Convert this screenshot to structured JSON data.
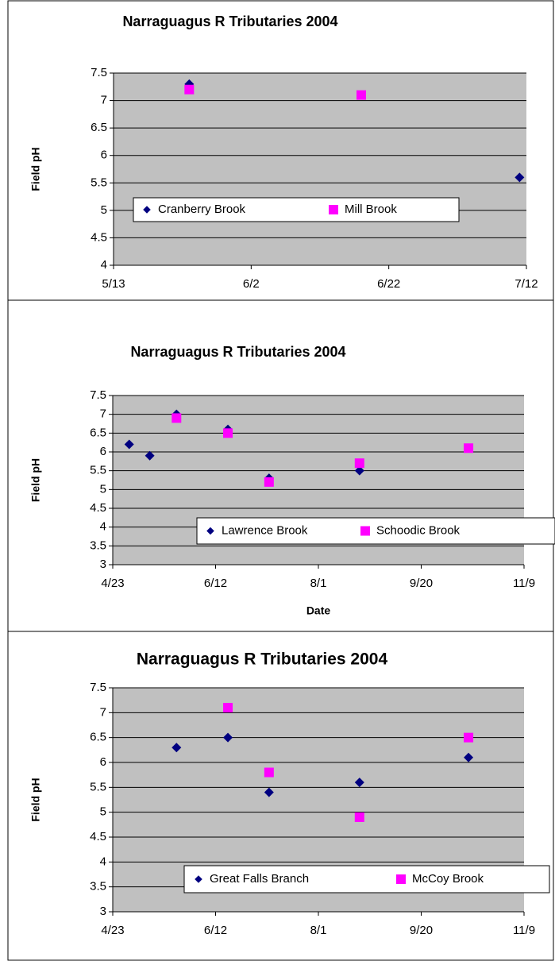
{
  "chart_data": [
    {
      "type": "scatter",
      "title": "Narraguagus R Tributaries 2004",
      "ylabel": "Field pH",
      "xlim": [
        134,
        194
      ],
      "xticks": [
        {
          "value": 134,
          "label": "5/13"
        },
        {
          "value": 154,
          "label": "6/2"
        },
        {
          "value": 174,
          "label": "6/22"
        },
        {
          "value": 194,
          "label": "7/12"
        }
      ],
      "ylim": [
        4,
        7.5
      ],
      "yticks": [
        4,
        4.5,
        5,
        5.5,
        6,
        6.5,
        7,
        7.5
      ],
      "grid": true,
      "series": [
        {
          "name": "Cranberry Brook",
          "color": "#000080",
          "marker": "diamond",
          "x": [
            145,
            193
          ],
          "values": [
            7.3,
            5.6
          ]
        },
        {
          "name": "Mill Brook",
          "color": "#ff00ff",
          "marker": "square",
          "x": [
            145,
            170
          ],
          "values": [
            7.2,
            7.1
          ]
        }
      ]
    },
    {
      "type": "scatter",
      "title": "Narraguagus R Tributaries 2004",
      "ylabel": "Field pH",
      "xlabel": "Date",
      "xlim": [
        114,
        314
      ],
      "xticks": [
        {
          "value": 114,
          "label": "4/23"
        },
        {
          "value": 164,
          "label": "6/12"
        },
        {
          "value": 214,
          "label": "8/1"
        },
        {
          "value": 264,
          "label": "9/20"
        },
        {
          "value": 314,
          "label": "11/9"
        }
      ],
      "ylim": [
        3,
        7.5
      ],
      "yticks": [
        3,
        3.5,
        4,
        4.5,
        5,
        5.5,
        6,
        6.5,
        7,
        7.5
      ],
      "grid": true,
      "series": [
        {
          "name": "Lawrence Brook",
          "color": "#000080",
          "marker": "diamond",
          "x": [
            122,
            132,
            145,
            170,
            190,
            234
          ],
          "values": [
            6.2,
            5.9,
            7.0,
            6.6,
            5.3,
            5.5
          ]
        },
        {
          "name": "Schoodic Brook",
          "color": "#ff00ff",
          "marker": "square",
          "x": [
            145,
            170,
            190,
            234,
            287
          ],
          "values": [
            6.9,
            6.5,
            5.2,
            5.7,
            6.1
          ]
        }
      ]
    },
    {
      "type": "scatter",
      "title": "Narraguagus R Tributaries 2004",
      "ylabel": "Field pH",
      "xlim": [
        114,
        314
      ],
      "xticks": [
        {
          "value": 114,
          "label": "4/23"
        },
        {
          "value": 164,
          "label": "6/12"
        },
        {
          "value": 214,
          "label": "8/1"
        },
        {
          "value": 264,
          "label": "9/20"
        },
        {
          "value": 314,
          "label": "11/9"
        }
      ],
      "ylim": [
        3,
        7.5
      ],
      "yticks": [
        3,
        3.5,
        4,
        4.5,
        5,
        5.5,
        6,
        6.5,
        7,
        7.5
      ],
      "grid": true,
      "series": [
        {
          "name": "Great Falls Branch",
          "color": "#000080",
          "marker": "diamond",
          "x": [
            145,
            170,
            190,
            234,
            287
          ],
          "values": [
            6.3,
            6.5,
            5.4,
            5.6,
            6.1
          ]
        },
        {
          "name": "McCoy Brook",
          "color": "#ff00ff",
          "marker": "square",
          "x": [
            170,
            190,
            234,
            287
          ],
          "values": [
            7.1,
            5.8,
            4.9,
            6.5
          ]
        }
      ]
    }
  ]
}
